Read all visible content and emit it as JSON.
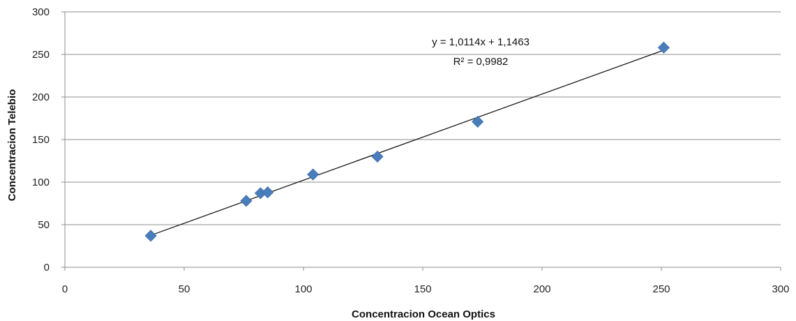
{
  "chart_data": {
    "type": "scatter",
    "xlabel": "Concentracion Ocean Optics",
    "ylabel": "Concentracion Telebio",
    "xlim": [
      0,
      300
    ],
    "ylim": [
      0,
      300
    ],
    "x_ticks": [
      "0",
      "50",
      "100",
      "150",
      "200",
      "250",
      "300"
    ],
    "y_ticks": [
      "0",
      "50",
      "100",
      "150",
      "200",
      "250",
      "300"
    ],
    "grid": "horizontal",
    "legend": "none",
    "series": [
      {
        "points": [
          {
            "x": 36,
            "y": 37
          },
          {
            "x": 76,
            "y": 78
          },
          {
            "x": 82,
            "y": 87
          },
          {
            "x": 85,
            "y": 88
          },
          {
            "x": 104,
            "y": 109
          },
          {
            "x": 131,
            "y": 130
          },
          {
            "x": 173,
            "y": 171
          },
          {
            "x": 251,
            "y": 258
          }
        ],
        "color": "#4a7ebb"
      }
    ],
    "trendline": {
      "type": "linear",
      "slope": 1.0114,
      "intercept": 1.1463,
      "x_range": [
        36,
        251
      ],
      "equation": "y = 1,0114x + 1,1463",
      "r_squared": "R² = 0,9982",
      "color": "#1a1a1a"
    }
  }
}
